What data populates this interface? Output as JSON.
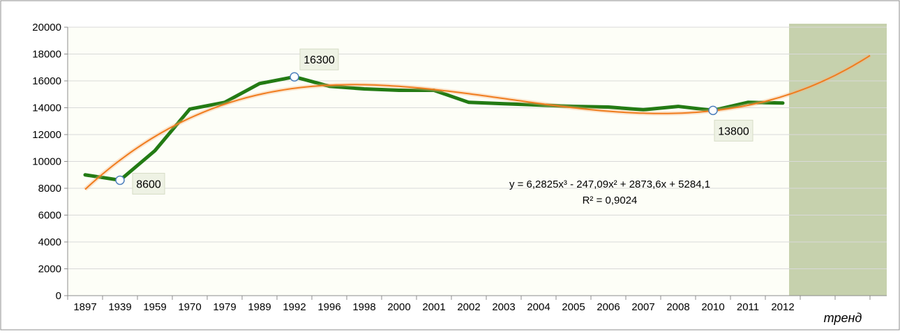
{
  "chart_data": {
    "type": "line",
    "categories": [
      "1897",
      "1939",
      "1959",
      "1970",
      "1979",
      "1989",
      "1992",
      "1996",
      "1998",
      "2000",
      "2001",
      "2002",
      "2003",
      "2004",
      "2005",
      "2006",
      "2007",
      "2008",
      "2010",
      "2011",
      "2012"
    ],
    "extra_category_label": "тренд",
    "ylim": [
      0,
      20000
    ],
    "yticks": [
      0,
      2000,
      4000,
      6000,
      8000,
      10000,
      12000,
      14000,
      16000,
      18000,
      20000
    ],
    "grid": true,
    "legend": "none",
    "series": [
      {
        "values": [
          9000,
          8600,
          10800,
          13900,
          14400,
          15800,
          16300,
          15600,
          15400,
          15300,
          15300,
          14400,
          14300,
          14200,
          14100,
          14050,
          13850,
          14100,
          13800,
          14400,
          14350
        ],
        "color": "#237b14"
      }
    ],
    "trendline": {
      "type": "polynomial",
      "color": "#f07c1e",
      "coefficients": [
        6.2825,
        -247.09,
        2873.6,
        5284.1
      ],
      "equation": "y = 6,2825x³ - 247,09x² + 2873,6x + 5284,1",
      "r_squared": "R² = 0,9024"
    },
    "annotations": [
      {
        "index": 1,
        "label": "8600"
      },
      {
        "index": 6,
        "label": "16300"
      },
      {
        "index": 18,
        "label": "13800"
      }
    ],
    "colors": {
      "plot_background": "#fdfef7",
      "forecast_band": "#c6d1ad",
      "gridline": "#d9d9d9",
      "callout_fill": "#eef2e4",
      "marker_stroke": "#4f81bd"
    }
  }
}
